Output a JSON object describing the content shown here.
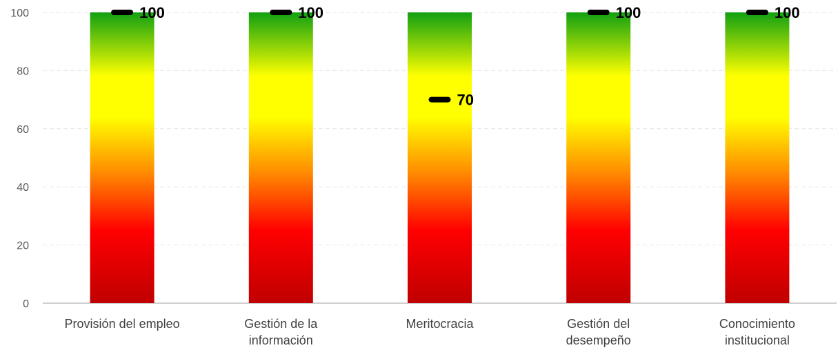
{
  "chart_data": {
    "type": "bar",
    "categories": [
      [
        "Provisión del empleo"
      ],
      [
        "Gestión de la",
        "información"
      ],
      [
        "Meritocracia"
      ],
      [
        "Gestión del",
        "desempeño"
      ],
      [
        "Conocimiento",
        "institucional"
      ]
    ],
    "bar_values": [
      100,
      100,
      100,
      100,
      100
    ],
    "marker_values": [
      100,
      100,
      70,
      100,
      100
    ],
    "value_labels": [
      "100",
      "100",
      "70",
      "100",
      "100"
    ],
    "yticks": [
      "0",
      "20",
      "40",
      "60",
      "80",
      "100"
    ],
    "ylim": [
      0,
      100
    ],
    "grid": true,
    "legend": "none",
    "title": "",
    "xlabel": "",
    "ylabel": "",
    "colors": {
      "gradient_top": "#11a011",
      "gradient_yellow": "#ffff00",
      "gradient_orange": "#ff8c00",
      "gradient_red": "#ff0000",
      "gradient_bottom": "#c00000",
      "marker": "#000000",
      "grid": "#e6e6e6",
      "axis": "#bfbfbf"
    }
  }
}
